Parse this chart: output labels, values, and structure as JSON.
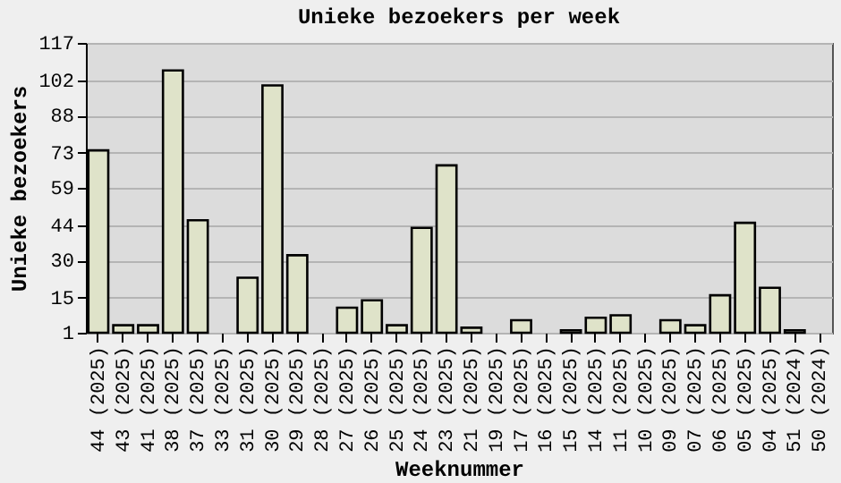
{
  "chart_data": {
    "type": "bar",
    "title": "Unieke bezoekers per week",
    "xlabel": "Weeknummer",
    "ylabel": "Unieke bezoekers",
    "categories": [
      "44 (2025)",
      "43 (2025)",
      "41 (2025)",
      "38 (2025)",
      "37 (2025)",
      "33 (2025)",
      "31 (2025)",
      "30 (2025)",
      "29 (2025)",
      "28 (2025)",
      "27 (2025)",
      "26 (2025)",
      "25 (2025)",
      "24 (2025)",
      "23 (2025)",
      "21 (2025)",
      "19 (2025)",
      "17 (2025)",
      "16 (2025)",
      "15 (2025)",
      "14 (2025)",
      "11 (2025)",
      "10 (2025)",
      "09 (2025)",
      "07 (2025)",
      "06 (2025)",
      "05 (2025)",
      "04 (2025)",
      "51 (2024)",
      "50 (2024)"
    ],
    "values": [
      74,
      4,
      4,
      106,
      46,
      null,
      23,
      100,
      32,
      null,
      11,
      14,
      4,
      43,
      68,
      3,
      null,
      6,
      null,
      2,
      7,
      8,
      null,
      6,
      4,
      16,
      45,
      19,
      2,
      null
    ],
    "color": "#dfe3c9",
    "ylim": [
      1,
      117
    ],
    "yticks": [
      1,
      15,
      30,
      44,
      59,
      73,
      88,
      102,
      117
    ],
    "grid": "y"
  }
}
